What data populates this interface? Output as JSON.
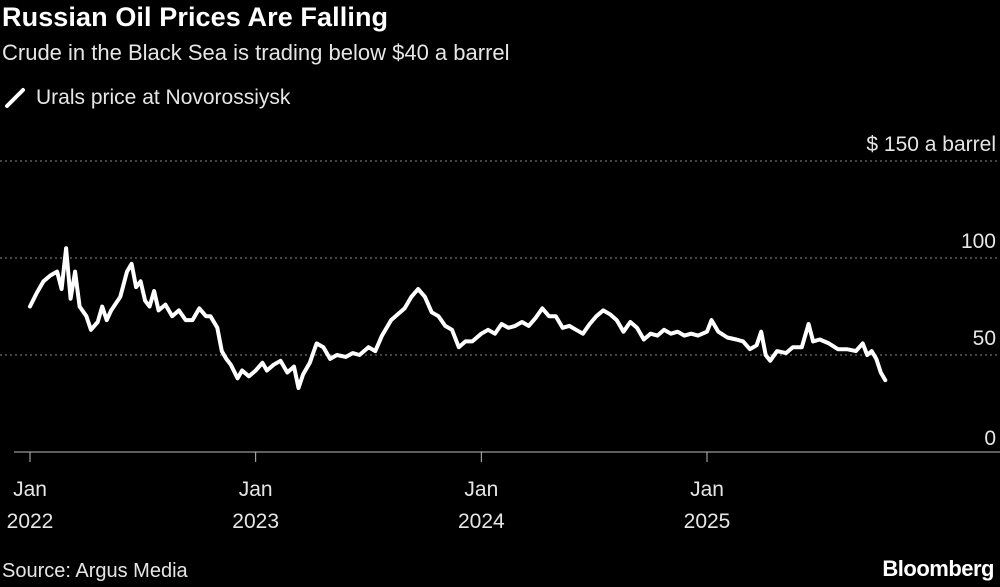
{
  "header": {
    "title": "Russian Oil Prices Are Falling",
    "subtitle": "Crude in the Black Sea is trading below $40 a barrel"
  },
  "legend": {
    "label": "Urals price at Novorossiysk",
    "color": "#ffffff"
  },
  "footer": {
    "source": "Source: Argus Media",
    "brand": "Bloomberg"
  },
  "chart_data": {
    "type": "line",
    "title": "Russian Oil Prices Are Falling",
    "subtitle": "Crude in the Black Sea is trading below $40 a barrel",
    "ylabel": "$ a barrel",
    "xlabel": "",
    "ylim": [
      0,
      150
    ],
    "yticks": [
      {
        "value": 150,
        "label": "$ 150 a barrel"
      },
      {
        "value": 100,
        "label": "100"
      },
      {
        "value": 50,
        "label": "50"
      },
      {
        "value": 0,
        "label": "0"
      }
    ],
    "xticks": [
      {
        "t": 2022.0,
        "line1": "Jan",
        "line2": "2022"
      },
      {
        "t": 2023.0,
        "line1": "Jan",
        "line2": "2023"
      },
      {
        "t": 2024.0,
        "line1": "Jan",
        "line2": "2024"
      },
      {
        "t": 2025.0,
        "line1": "Jan",
        "line2": "2025"
      }
    ],
    "xlim": [
      2021.99,
      2026.15
    ],
    "grid": true,
    "legend_position": "top-left",
    "series": [
      {
        "name": "Urals price at Novorossiysk",
        "color": "#ffffff",
        "points": [
          [
            2022.0,
            75
          ],
          [
            2022.03,
            82
          ],
          [
            2022.06,
            88
          ],
          [
            2022.09,
            91
          ],
          [
            2022.12,
            93
          ],
          [
            2022.14,
            84
          ],
          [
            2022.16,
            105
          ],
          [
            2022.18,
            79
          ],
          [
            2022.2,
            93
          ],
          [
            2022.22,
            75
          ],
          [
            2022.25,
            70
          ],
          [
            2022.27,
            63
          ],
          [
            2022.3,
            67
          ],
          [
            2022.32,
            75
          ],
          [
            2022.34,
            68
          ],
          [
            2022.36,
            73
          ],
          [
            2022.4,
            80
          ],
          [
            2022.43,
            93
          ],
          [
            2022.45,
            97
          ],
          [
            2022.47,
            85
          ],
          [
            2022.49,
            88
          ],
          [
            2022.51,
            78
          ],
          [
            2022.53,
            75
          ],
          [
            2022.55,
            83
          ],
          [
            2022.57,
            73
          ],
          [
            2022.6,
            76
          ],
          [
            2022.63,
            70
          ],
          [
            2022.66,
            73
          ],
          [
            2022.69,
            68
          ],
          [
            2022.72,
            68
          ],
          [
            2022.75,
            74
          ],
          [
            2022.78,
            70
          ],
          [
            2022.8,
            70
          ],
          [
            2022.83,
            64
          ],
          [
            2022.85,
            52
          ],
          [
            2022.87,
            48
          ],
          [
            2022.89,
            45
          ],
          [
            2022.92,
            38
          ],
          [
            2022.94,
            42
          ],
          [
            2022.97,
            39
          ],
          [
            2023.0,
            42
          ],
          [
            2023.03,
            46
          ],
          [
            2023.05,
            42
          ],
          [
            2023.08,
            45
          ],
          [
            2023.11,
            47
          ],
          [
            2023.14,
            41
          ],
          [
            2023.17,
            44
          ],
          [
            2023.19,
            33
          ],
          [
            2023.21,
            40
          ],
          [
            2023.24,
            46
          ],
          [
            2023.27,
            56
          ],
          [
            2023.3,
            54
          ],
          [
            2023.33,
            48
          ],
          [
            2023.36,
            50
          ],
          [
            2023.4,
            49
          ],
          [
            2023.43,
            51
          ],
          [
            2023.46,
            50
          ],
          [
            2023.5,
            54
          ],
          [
            2023.53,
            52
          ],
          [
            2023.56,
            60
          ],
          [
            2023.6,
            68
          ],
          [
            2023.63,
            71
          ],
          [
            2023.66,
            74
          ],
          [
            2023.69,
            80
          ],
          [
            2023.72,
            84
          ],
          [
            2023.75,
            80
          ],
          [
            2023.78,
            72
          ],
          [
            2023.81,
            70
          ],
          [
            2023.84,
            65
          ],
          [
            2023.87,
            63
          ],
          [
            2023.9,
            54
          ],
          [
            2023.93,
            57
          ],
          [
            2023.96,
            57
          ],
          [
            2024.0,
            61
          ],
          [
            2024.03,
            63
          ],
          [
            2024.06,
            61
          ],
          [
            2024.09,
            66
          ],
          [
            2024.12,
            64
          ],
          [
            2024.15,
            65
          ],
          [
            2024.18,
            67
          ],
          [
            2024.21,
            65
          ],
          [
            2024.24,
            69
          ],
          [
            2024.27,
            74
          ],
          [
            2024.3,
            70
          ],
          [
            2024.33,
            70
          ],
          [
            2024.36,
            64
          ],
          [
            2024.39,
            65
          ],
          [
            2024.42,
            63
          ],
          [
            2024.45,
            61
          ],
          [
            2024.48,
            66
          ],
          [
            2024.51,
            70
          ],
          [
            2024.54,
            73
          ],
          [
            2024.57,
            71
          ],
          [
            2024.6,
            68
          ],
          [
            2024.63,
            62
          ],
          [
            2024.66,
            67
          ],
          [
            2024.69,
            64
          ],
          [
            2024.72,
            58
          ],
          [
            2024.75,
            61
          ],
          [
            2024.78,
            60
          ],
          [
            2024.81,
            63
          ],
          [
            2024.84,
            61
          ],
          [
            2024.87,
            62
          ],
          [
            2024.9,
            60
          ],
          [
            2024.93,
            61
          ],
          [
            2024.96,
            60
          ],
          [
            2025.0,
            62
          ],
          [
            2025.02,
            68
          ],
          [
            2025.05,
            62
          ],
          [
            2025.09,
            59
          ],
          [
            2025.13,
            58
          ],
          [
            2025.16,
            57
          ],
          [
            2025.19,
            53
          ],
          [
            2025.22,
            55
          ],
          [
            2025.24,
            62
          ],
          [
            2025.26,
            50
          ],
          [
            2025.28,
            47
          ],
          [
            2025.31,
            52
          ],
          [
            2025.35,
            51
          ],
          [
            2025.38,
            54
          ],
          [
            2025.42,
            54
          ],
          [
            2025.45,
            66
          ],
          [
            2025.47,
            57
          ],
          [
            2025.5,
            58
          ],
          [
            2025.54,
            56
          ],
          [
            2025.58,
            53
          ],
          [
            2025.62,
            53
          ],
          [
            2025.66,
            52
          ],
          [
            2025.69,
            56
          ],
          [
            2025.71,
            50
          ],
          [
            2025.73,
            52
          ],
          [
            2025.75,
            48
          ],
          [
            2025.77,
            41
          ],
          [
            2025.79,
            37
          ]
        ]
      }
    ]
  }
}
